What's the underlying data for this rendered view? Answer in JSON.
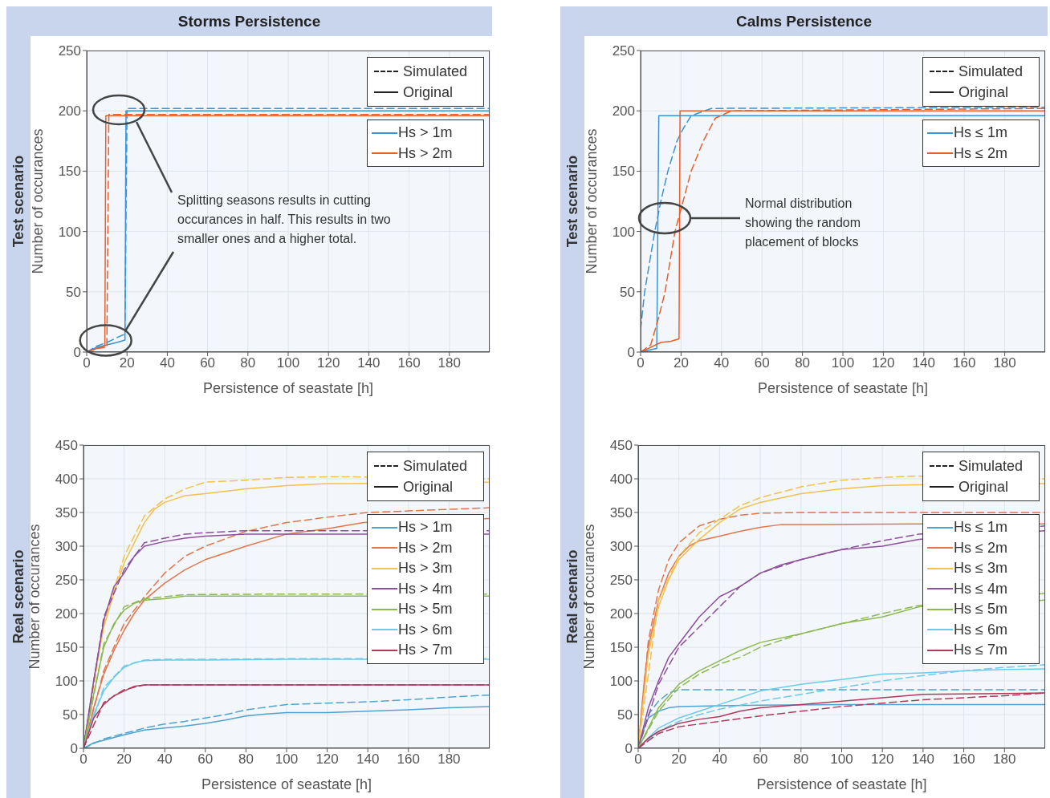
{
  "chart_data": [
    {
      "type": "line",
      "title": "Storms Persistence",
      "subtitle": "Test scenario",
      "xlabel": "Persistence of seastate [h]",
      "ylabel": "Number of occurances",
      "xlim": [
        0,
        200
      ],
      "xticks": [
        0,
        20,
        40,
        60,
        80,
        100,
        120,
        140,
        160,
        180
      ],
      "ylim": [
        0,
        250
      ],
      "yticks": [
        0,
        50,
        100,
        150,
        200,
        250
      ],
      "grid": true,
      "legend": "top right",
      "annotations": [
        "Simulated",
        "Original",
        {
          "text": "Splitting seasons results in cutting occurances in half. This results in two smaller ones and a higher total.",
          "x": 19,
          "y": 17
        }
      ],
      "series": [
        {
          "color": "#3a93d3",
          "line_style": "dashed",
          "x": [
            0,
            5,
            10,
            15,
            19,
            20,
            200
          ],
          "values": [
            0,
            5,
            8,
            12,
            15,
            202,
            202
          ]
        },
        {
          "name": "Hs > 1m",
          "color": "#3a93d3",
          "line_style": "solid",
          "x": [
            0,
            5,
            10,
            15,
            19,
            19.5,
            200
          ],
          "values": [
            0,
            4,
            6,
            8,
            10,
            200,
            200
          ]
        },
        {
          "color": "#e5602f",
          "line_style": "dashed",
          "x": [
            0,
            5,
            10,
            11,
            200
          ],
          "values": [
            0,
            3,
            4,
            197,
            197
          ]
        },
        {
          "name": "Hs > 2m",
          "color": "#e5602f",
          "line_style": "solid",
          "x": [
            0,
            5,
            9,
            9.5,
            200
          ],
          "values": [
            0,
            3,
            5,
            196,
            196
          ]
        }
      ]
    },
    {
      "type": "line",
      "title": "Calms Persistence",
      "subtitle": "Test scenario",
      "xlabel": "Persistence of seastate [h]",
      "ylabel": "Number of occurances",
      "xlim": [
        0,
        200
      ],
      "xticks": [
        0,
        20,
        40,
        60,
        80,
        100,
        120,
        140,
        160,
        180
      ],
      "ylim": [
        0,
        250
      ],
      "yticks": [
        0,
        50,
        100,
        150,
        200,
        250
      ],
      "grid": true,
      "legend": "top right",
      "annotations": [
        "Simulated",
        "Original",
        "Normal distribution showing the random placement of blocks"
      ],
      "series": [
        {
          "color": "#3a93d3",
          "line_style": "dashed",
          "x": [
            0,
            2,
            7,
            10,
            13.5,
            18,
            21,
            25,
            35,
            200
          ],
          "values": [
            19,
            50,
            100,
            125,
            150,
            175,
            185,
            196,
            202,
            203
          ]
        },
        {
          "name": "Hs ≤ 1m",
          "color": "#3a93d3",
          "line_style": "solid",
          "x": [
            0,
            5,
            8,
            9,
            200
          ],
          "values": [
            0,
            2,
            3,
            196,
            196
          ]
        },
        {
          "color": "#e5602f",
          "line_style": "dashed",
          "x": [
            0,
            5,
            8.5,
            12,
            17,
            21,
            25,
            31,
            37,
            45,
            200
          ],
          "values": [
            0,
            6,
            26,
            49,
            100,
            125,
            150,
            175,
            194,
            200,
            202
          ]
        },
        {
          "name": "Hs ≤ 2m",
          "color": "#e5602f",
          "line_style": "solid",
          "x": [
            0,
            10,
            15,
            19,
            19.5,
            200
          ],
          "values": [
            0,
            8,
            9,
            11,
            200,
            200
          ]
        }
      ]
    },
    {
      "type": "line",
      "subtitle": "Real scenario",
      "xlabel": "Persistence of seastate [h]",
      "ylabel": "Number of occurances",
      "xlim": [
        0,
        200
      ],
      "xticks": [
        0,
        20,
        40,
        60,
        80,
        100,
        120,
        140,
        160,
        180
      ],
      "ylim": [
        0,
        450
      ],
      "yticks": [
        0,
        50,
        100,
        150,
        200,
        250,
        300,
        350,
        400,
        450
      ],
      "grid": true,
      "legend": "top right",
      "annotations": [
        "Simulated",
        "Original"
      ],
      "series": [
        {
          "color": "#4fa3d1",
          "line_style": "dashed",
          "x": [
            0,
            10,
            20,
            30,
            40,
            50,
            60,
            70,
            80,
            90,
            100,
            120,
            140,
            160,
            180,
            200
          ],
          "values": [
            0,
            14,
            22,
            30,
            36,
            40,
            45,
            50,
            57,
            61,
            65,
            67,
            69,
            72,
            76,
            79
          ]
        },
        {
          "name": "Hs > 1m",
          "color": "#4fa3d1",
          "line_style": "solid",
          "x": [
            0,
            5,
            10,
            20,
            30,
            40,
            50,
            60,
            70,
            80,
            90,
            100,
            120,
            140,
            160,
            180,
            200
          ],
          "values": [
            0,
            8,
            12,
            20,
            27,
            30,
            33,
            37,
            42,
            48,
            51,
            53,
            53,
            55,
            57,
            60,
            62
          ]
        },
        {
          "color": "#e0764e",
          "line_style": "dashed",
          "x": [
            0,
            10,
            20,
            30,
            40,
            50,
            60,
            80,
            100,
            120,
            140,
            200
          ],
          "values": [
            0,
            115,
            185,
            225,
            260,
            285,
            300,
            322,
            335,
            343,
            350,
            357
          ]
        },
        {
          "name": "Hs > 2m",
          "color": "#e0764e",
          "line_style": "solid",
          "x": [
            0,
            5,
            10,
            15,
            20,
            25,
            30,
            40,
            50,
            60,
            80,
            100,
            120,
            138,
            200
          ],
          "values": [
            0,
            60,
            110,
            145,
            175,
            200,
            220,
            245,
            265,
            280,
            300,
            318,
            326,
            335,
            341
          ]
        },
        {
          "color": "#f2c14e",
          "line_style": "dashed",
          "x": [
            0,
            10,
            20,
            30,
            40,
            50,
            60,
            80,
            100,
            120,
            130,
            200
          ],
          "values": [
            0,
            185,
            285,
            345,
            370,
            385,
            395,
            398,
            402,
            403,
            403,
            400
          ]
        },
        {
          "name": "Hs > 3m",
          "color": "#f2c14e",
          "line_style": "solid",
          "x": [
            0,
            5,
            10,
            15,
            20,
            25,
            30,
            35,
            40,
            50,
            60,
            80,
            100,
            120,
            130,
            200
          ],
          "values": [
            0,
            100,
            180,
            230,
            275,
            305,
            335,
            355,
            365,
            375,
            378,
            385,
            390,
            393,
            393,
            395
          ]
        },
        {
          "color": "#8e4f9e",
          "line_style": "dashed",
          "x": [
            0,
            10,
            20,
            30,
            40,
            50,
            60,
            80,
            100,
            138,
            200
          ],
          "values": [
            0,
            195,
            265,
            305,
            312,
            318,
            320,
            323,
            323,
            323,
            323
          ]
        },
        {
          "name": "Hs > 4m",
          "color": "#8e4f9e",
          "line_style": "solid",
          "x": [
            0,
            5,
            10,
            15,
            20,
            25,
            30,
            40,
            50,
            60,
            80,
            100,
            138,
            200
          ],
          "values": [
            0,
            100,
            190,
            240,
            260,
            285,
            300,
            307,
            312,
            315,
            318,
            318,
            318,
            318
          ]
        },
        {
          "color": "#8db852",
          "line_style": "dashed",
          "x": [
            0,
            10,
            20,
            30,
            40,
            50,
            100,
            138,
            200
          ],
          "values": [
            0,
            155,
            210,
            222,
            225,
            228,
            229,
            229,
            229
          ]
        },
        {
          "name": "Hs > 5m",
          "color": "#8db852",
          "line_style": "solid",
          "x": [
            0,
            5,
            10,
            15,
            20,
            25,
            30,
            40,
            50,
            100,
            138,
            200
          ],
          "values": [
            0,
            80,
            150,
            185,
            205,
            215,
            220,
            222,
            226,
            226,
            226,
            226
          ]
        },
        {
          "color": "#6ccbea",
          "line_style": "dashed",
          "x": [
            0,
            10,
            20,
            30,
            40,
            60,
            100,
            138,
            200
          ],
          "values": [
            0,
            90,
            122,
            131,
            132,
            132,
            133,
            133,
            133
          ]
        },
        {
          "name": "Hs > 6m",
          "color": "#6ccbea",
          "line_style": "solid",
          "x": [
            0,
            5,
            10,
            15,
            20,
            25,
            30,
            40,
            60,
            100,
            138,
            200
          ],
          "values": [
            0,
            50,
            85,
            105,
            120,
            127,
            130,
            131,
            131,
            132,
            132,
            132
          ]
        },
        {
          "color": "#b03a5b",
          "line_style": "dashed",
          "x": [
            0,
            10,
            20,
            30,
            200
          ],
          "values": [
            0,
            68,
            87,
            94,
            94
          ]
        },
        {
          "name": "Hs > 7m",
          "color": "#b03a5b",
          "line_style": "solid",
          "x": [
            0,
            5,
            10,
            15,
            20,
            25,
            30,
            40,
            200
          ],
          "values": [
            0,
            45,
            65,
            78,
            85,
            92,
            94,
            94,
            94
          ]
        }
      ]
    },
    {
      "type": "line",
      "subtitle": "Real scenario",
      "xlabel": "Persistence of seastate [h]",
      "ylabel": "Number of occurances",
      "xlim": [
        0,
        200
      ],
      "xticks": [
        0,
        20,
        40,
        60,
        80,
        100,
        120,
        140,
        160,
        180
      ],
      "ylim": [
        0,
        450
      ],
      "yticks": [
        0,
        50,
        100,
        150,
        200,
        250,
        300,
        350,
        400,
        450
      ],
      "grid": true,
      "legend": "top right",
      "annotations": [
        "Simulated",
        "Original"
      ],
      "series": [
        {
          "color": "#4fa3d1",
          "line_style": "dashed",
          "x": [
            0,
            5,
            10,
            15,
            20,
            200
          ],
          "values": [
            0,
            50,
            70,
            82,
            87,
            87
          ]
        },
        {
          "name": "Hs ≤ 1m",
          "color": "#4fa3d1",
          "line_style": "solid",
          "x": [
            0,
            3,
            5,
            10,
            15,
            20,
            40,
            60,
            100,
            140,
            200
          ],
          "values": [
            0,
            30,
            45,
            55,
            60,
            62,
            63,
            64,
            65,
            65,
            65
          ]
        },
        {
          "color": "#e0764e",
          "line_style": "dashed",
          "x": [
            0,
            5,
            10,
            15,
            20,
            30,
            40,
            50,
            60,
            80,
            138,
            200
          ],
          "values": [
            0,
            160,
            235,
            280,
            305,
            330,
            340,
            346,
            349,
            350,
            350,
            350
          ]
        },
        {
          "name": "Hs ≤ 2m",
          "color": "#e0764e",
          "line_style": "solid",
          "x": [
            0,
            3,
            5,
            10,
            15,
            20,
            25,
            30,
            40,
            50,
            60,
            70,
            138,
            200
          ],
          "values": [
            0,
            100,
            150,
            220,
            260,
            285,
            300,
            308,
            315,
            322,
            328,
            332,
            333,
            333
          ]
        },
        {
          "color": "#f2c14e",
          "line_style": "dashed",
          "x": [
            0,
            10,
            20,
            30,
            40,
            50,
            60,
            80,
            100,
            120,
            135,
            200
          ],
          "values": [
            0,
            220,
            285,
            320,
            340,
            360,
            372,
            388,
            398,
            402,
            404,
            400
          ]
        },
        {
          "name": "Hs ≤ 3m",
          "color": "#f2c14e",
          "line_style": "solid",
          "x": [
            0,
            5,
            10,
            15,
            20,
            30,
            40,
            50,
            60,
            80,
            100,
            120,
            135,
            200
          ],
          "values": [
            0,
            140,
            210,
            250,
            280,
            310,
            335,
            355,
            365,
            378,
            385,
            390,
            391,
            393
          ]
        },
        {
          "color": "#8e4f9e",
          "line_style": "dashed",
          "x": [
            0,
            10,
            20,
            30,
            40,
            50,
            60,
            80,
            100,
            120,
            138,
            200
          ],
          "values": [
            0,
            95,
            150,
            180,
            210,
            240,
            260,
            280,
            295,
            308,
            318,
            330
          ]
        },
        {
          "name": "Hs ≤ 4m",
          "color": "#8e4f9e",
          "line_style": "solid",
          "x": [
            0,
            5,
            10,
            15,
            20,
            30,
            40,
            50,
            60,
            70,
            80,
            90,
            100,
            120,
            138,
            200
          ],
          "values": [
            0,
            60,
            100,
            135,
            155,
            195,
            225,
            240,
            260,
            272,
            280,
            288,
            295,
            300,
            310,
            323
          ]
        },
        {
          "color": "#8db852",
          "line_style": "dashed",
          "x": [
            0,
            10,
            20,
            30,
            40,
            50,
            60,
            80,
            100,
            120,
            138,
            200
          ],
          "values": [
            0,
            55,
            90,
            110,
            125,
            135,
            150,
            170,
            185,
            200,
            212,
            230
          ]
        },
        {
          "name": "Hs ≤ 5m",
          "color": "#8db852",
          "line_style": "solid",
          "x": [
            0,
            5,
            10,
            20,
            30,
            40,
            50,
            60,
            80,
            100,
            120,
            138,
            200
          ],
          "values": [
            0,
            30,
            60,
            95,
            115,
            130,
            145,
            157,
            170,
            185,
            195,
            210,
            220
          ]
        },
        {
          "color": "#6ccbea",
          "line_style": "dashed",
          "x": [
            0,
            10,
            20,
            30,
            40,
            60,
            80,
            100,
            120,
            140,
            160,
            180,
            200
          ],
          "values": [
            0,
            25,
            40,
            50,
            58,
            70,
            80,
            90,
            100,
            108,
            115,
            120,
            124
          ]
        },
        {
          "name": "Hs ≤ 6m",
          "color": "#6ccbea",
          "line_style": "solid",
          "x": [
            0,
            5,
            10,
            20,
            30,
            40,
            50,
            60,
            80,
            100,
            120,
            140,
            160,
            180,
            200
          ],
          "values": [
            0,
            15,
            30,
            45,
            55,
            65,
            75,
            85,
            95,
            102,
            110,
            112,
            115,
            117,
            118
          ]
        },
        {
          "color": "#b03a5b",
          "line_style": "dashed",
          "x": [
            0,
            10,
            20,
            40,
            60,
            80,
            100,
            120,
            140,
            160,
            180,
            200
          ],
          "values": [
            0,
            22,
            32,
            40,
            48,
            55,
            62,
            67,
            72,
            75,
            78,
            82
          ]
        },
        {
          "name": "Hs ≤ 7m",
          "color": "#b03a5b",
          "line_style": "solid",
          "x": [
            0,
            5,
            10,
            20,
            30,
            40,
            50,
            60,
            80,
            100,
            120,
            140,
            200
          ],
          "values": [
            0,
            15,
            25,
            37,
            43,
            47,
            55,
            60,
            65,
            70,
            75,
            80,
            82
          ]
        }
      ]
    }
  ]
}
